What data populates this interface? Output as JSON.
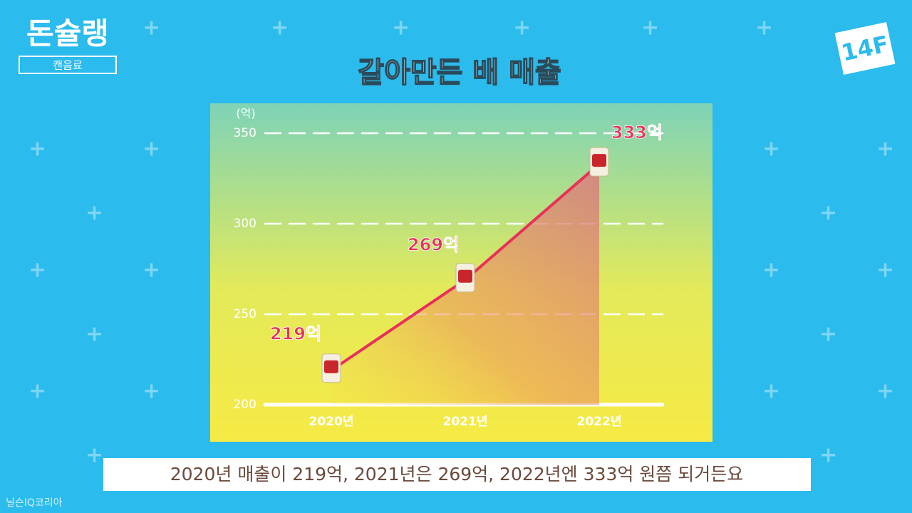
{
  "logo": {
    "title": "돈슐랭",
    "subtitle": "캔음료"
  },
  "channel": "14F",
  "caption": "2020년 매출이 219억, 2021년은 269억, 2022년엔 333억 원쯤 되거든요",
  "source": "닐슨IQ코리아",
  "chart_data": {
    "type": "area",
    "title": "갈아만든 배 매출",
    "ylabel": "(억)",
    "categories": [
      "2020년",
      "2021년",
      "2022년"
    ],
    "values": [
      219,
      269,
      333
    ],
    "value_labels": [
      "219억",
      "269억",
      "333억"
    ],
    "color": "#e8305a",
    "ylim": [
      200,
      350
    ],
    "yticks": [
      200,
      250,
      300,
      350
    ],
    "grid": true
  }
}
